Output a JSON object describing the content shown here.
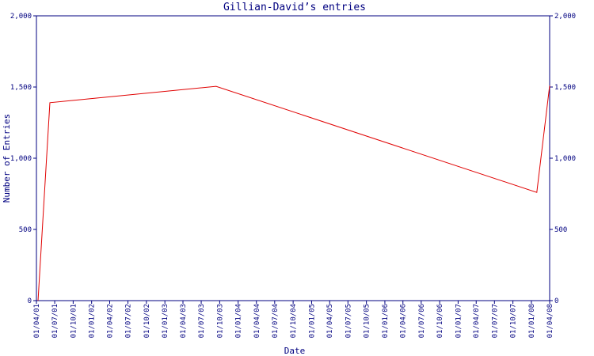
{
  "chart_data": {
    "type": "line",
    "title": "Gillian-David’s entries",
    "x_label": "Date",
    "y_label": "Number of Entries",
    "x": [
      "2001-04-09",
      "2001-06-07",
      "2003-09-13",
      "2008-01-28",
      "2008-04-01"
    ],
    "series": [
      {
        "name": "Entries",
        "color": "#e00000",
        "values": [
          0,
          1390,
          1505,
          760,
          1510
        ]
      }
    ],
    "xlim": [
      "2001-04-01",
      "2008-04-01"
    ],
    "xticks": [
      {
        "value": "2001-04-01",
        "label": "01/04/01"
      },
      {
        "value": "2001-07-01",
        "label": "01/07/01"
      },
      {
        "value": "2001-10-01",
        "label": "01/10/01"
      },
      {
        "value": "2002-01-01",
        "label": "01/01/02"
      },
      {
        "value": "2002-04-01",
        "label": "01/04/02"
      },
      {
        "value": "2002-07-01",
        "label": "01/07/02"
      },
      {
        "value": "2002-10-01",
        "label": "01/10/02"
      },
      {
        "value": "2003-01-01",
        "label": "01/01/03"
      },
      {
        "value": "2003-04-01",
        "label": "01/04/03"
      },
      {
        "value": "2003-07-01",
        "label": "01/07/03"
      },
      {
        "value": "2003-10-01",
        "label": "01/10/03"
      },
      {
        "value": "2004-01-01",
        "label": "01/01/04"
      },
      {
        "value": "2004-04-01",
        "label": "01/04/04"
      },
      {
        "value": "2004-07-01",
        "label": "01/07/04"
      },
      {
        "value": "2004-10-01",
        "label": "01/10/04"
      },
      {
        "value": "2005-01-01",
        "label": "01/01/05"
      },
      {
        "value": "2005-04-01",
        "label": "01/04/05"
      },
      {
        "value": "2005-07-01",
        "label": "01/07/05"
      },
      {
        "value": "2005-10-01",
        "label": "01/10/05"
      },
      {
        "value": "2006-01-01",
        "label": "01/01/06"
      },
      {
        "value": "2006-04-01",
        "label": "01/04/06"
      },
      {
        "value": "2006-07-01",
        "label": "01/07/06"
      },
      {
        "value": "2006-10-01",
        "label": "01/10/06"
      },
      {
        "value": "2007-01-01",
        "label": "01/01/07"
      },
      {
        "value": "2007-04-01",
        "label": "01/04/07"
      },
      {
        "value": "2007-07-01",
        "label": "01/07/07"
      },
      {
        "value": "2007-10-01",
        "label": "01/10/07"
      },
      {
        "value": "2008-01-01",
        "label": "01/01/08"
      },
      {
        "value": "2008-04-01",
        "label": "01/04/08"
      }
    ],
    "ylim": [
      0,
      2000
    ],
    "yticks": [
      0,
      500,
      {
        "value": 1000,
        "label": "1,000"
      },
      {
        "value": 1500,
        "label": "1,500"
      },
      {
        "value": 2000,
        "label": "2,000"
      }
    ]
  }
}
